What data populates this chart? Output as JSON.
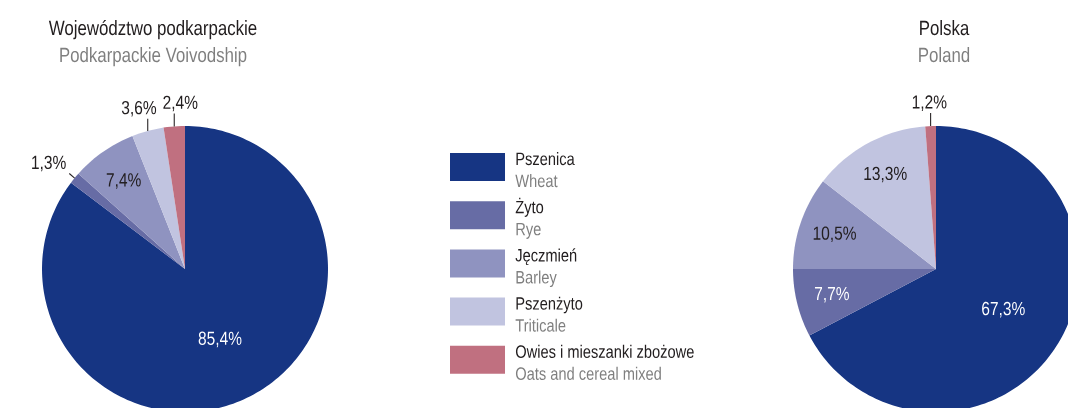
{
  "chart_data": [
    {
      "type": "pie",
      "title": "Województwo podkarpackie",
      "subtitle": "Podkarpackie Voivodship",
      "categories": [
        "Pszenica",
        "Żyto",
        "Jęczmień",
        "Pszenżyto",
        "Owies i mieszanki zbożowe"
      ],
      "values": [
        85.4,
        1.3,
        7.4,
        3.6,
        2.4
      ],
      "colors": [
        "#163583",
        "#676ca5",
        "#8f93c0",
        "#c1c4e0",
        "#c07080"
      ],
      "value_labels": [
        "85,4%",
        "1,3%",
        "7,4%",
        "3,6%",
        "2,4%"
      ],
      "legend": "right",
      "annotations": [
        "Wheat",
        "Rye",
        "Barley",
        "Triticale",
        "Oats and cereal mixed"
      ]
    },
    {
      "type": "pie",
      "title": "Polska",
      "subtitle": "Poland",
      "categories": [
        null,
        null,
        null,
        null,
        null
      ],
      "values": [
        67.3,
        7.7,
        10.5,
        13.3,
        1.2
      ],
      "colors": [
        "#163583",
        "#676ca5",
        "#8f93c0",
        "#c1c4e0",
        "#c07080"
      ],
      "value_labels": [
        "67,3%",
        "7,7%",
        "10,5%",
        "13,3%",
        "1,2%"
      ]
    }
  ]
}
